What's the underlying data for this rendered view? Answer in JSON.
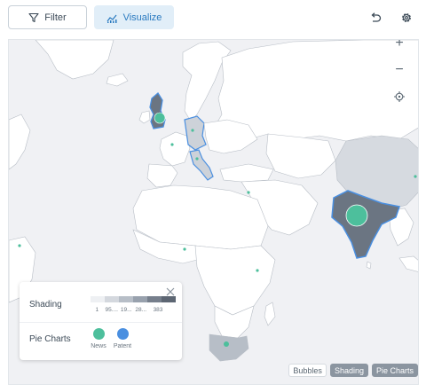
{
  "toolbar": {
    "filter_label": "Filter",
    "visualize_label": "Visualize",
    "filter_icon": "filter-icon",
    "visualize_icon": "chart-line-icon",
    "undo_icon": "undo-icon",
    "settings_icon": "gear-icon"
  },
  "map": {
    "zoom_in_label": "+",
    "zoom_out_label": "−",
    "locate_icon": "crosshair-icon"
  },
  "legend": {
    "shading_label": "Shading",
    "scale_ticks": [
      "1",
      "95....",
      "19...",
      "28...",
      "383"
    ],
    "scale_colors": [
      "#eef0f3",
      "#d4d8de",
      "#b7bec7",
      "#98a1ad",
      "#767f8c",
      "#5d6673"
    ],
    "pie_label": "Pie Charts",
    "series": [
      {
        "name": "News",
        "color": "#4dbf9c"
      },
      {
        "name": "Patent",
        "color": "#4a8fe0"
      }
    ]
  },
  "view_toggles": [
    {
      "label": "Bubbles",
      "active": false
    },
    {
      "label": "Shading",
      "active": true
    },
    {
      "label": "Pie Charts",
      "active": true
    }
  ],
  "colors": {
    "accent": "#2a7ac0",
    "news": "#4dbf9c",
    "highlight_outline": "#4a8fe0"
  }
}
